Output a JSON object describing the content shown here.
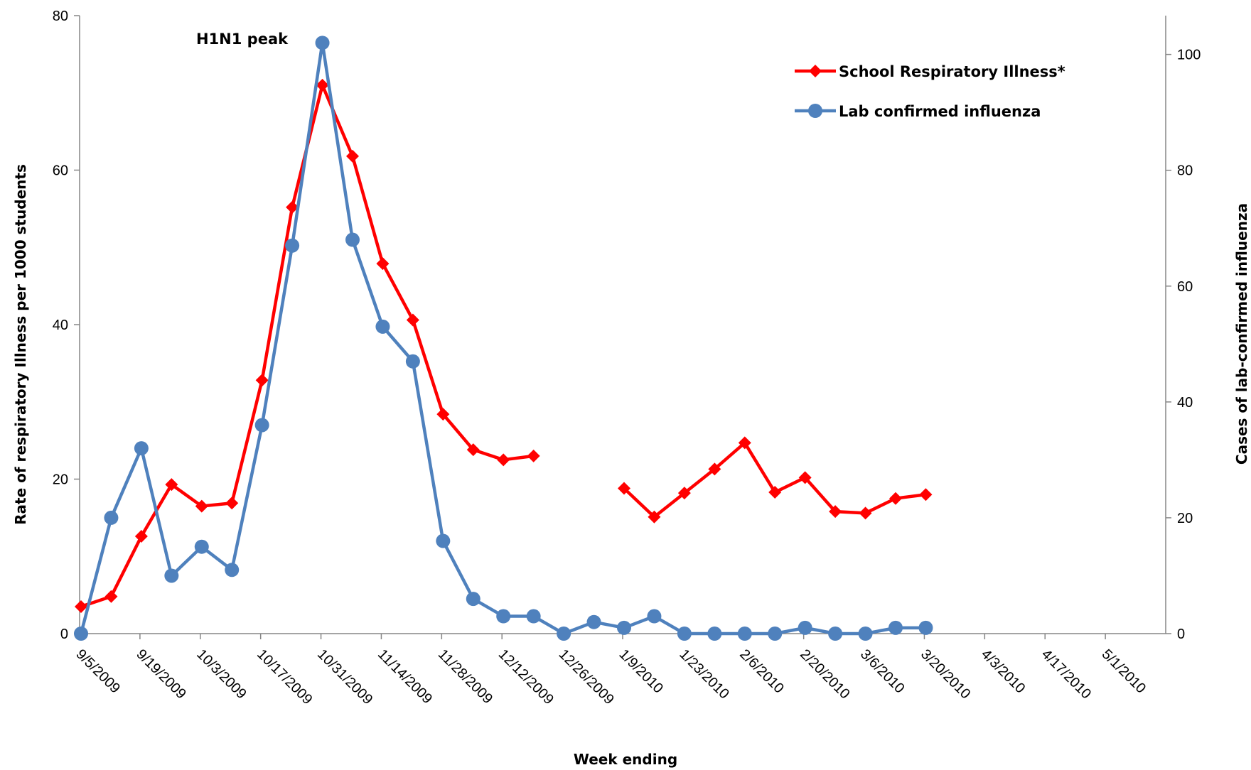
{
  "chart_data": {
    "type": "line",
    "title": "",
    "xlabel": "Week ending",
    "ylabel_left": "Rate of respiratory Illness per 1000 students",
    "ylabel_right": "Cases of lab-confirmed influenza",
    "ylim_left": [
      0,
      80
    ],
    "yticks_left": [
      "0",
      "20",
      "40",
      "60",
      "80"
    ],
    "ylim_right": [
      0,
      106.7
    ],
    "yticks_right": [
      "0",
      "20",
      "40",
      "60",
      "80",
      "100"
    ],
    "grid": false,
    "legend_position": "top-right",
    "x_tick_labels": [
      "9/5/2009",
      "9/19/2009",
      "10/3/2009",
      "10/17/2009",
      "10/31/2009",
      "11/14/2009",
      "11/28/2009",
      "12/12/2009",
      "12/26/2009",
      "1/9/2010",
      "1/23/2010",
      "2/6/2010",
      "2/20/2010",
      "3/6/2010",
      "3/20/2010",
      "4/3/2010",
      "4/17/2010",
      "5/1/2010"
    ],
    "x_weeks": [
      "9/5/2009",
      "9/12/2009",
      "9/19/2009",
      "9/26/2009",
      "10/3/2009",
      "10/10/2009",
      "10/17/2009",
      "10/24/2009",
      "10/31/2009",
      "11/7/2009",
      "11/14/2009",
      "11/21/2009",
      "11/28/2009",
      "12/5/2009",
      "12/12/2009",
      "12/19/2009",
      "12/26/2009",
      "1/2/2010",
      "1/9/2010",
      "1/16/2010",
      "1/23/2010",
      "1/30/2010",
      "2/6/2010",
      "2/13/2010",
      "2/20/2010",
      "2/27/2010",
      "3/6/2010",
      "3/13/2010",
      "3/20/2010"
    ],
    "series": [
      {
        "name": "School Respiratory Illness*",
        "axis": "left",
        "color": "#ff0000",
        "marker": "diamond",
        "values": [
          3.5,
          4.8,
          12.6,
          19.3,
          16.5,
          16.9,
          32.8,
          55.2,
          71.0,
          61.8,
          47.9,
          40.6,
          28.4,
          23.8,
          22.5,
          23.0,
          null,
          null,
          18.8,
          15.1,
          18.2,
          21.3,
          24.7,
          18.3,
          20.2,
          15.8,
          15.6,
          17.5,
          18.0
        ]
      },
      {
        "name": "Lab confirmed influenza",
        "axis": "right",
        "color": "#4f81bd",
        "marker": "circle",
        "values": [
          0,
          20,
          32,
          10,
          15,
          11,
          36,
          67,
          102,
          68,
          53,
          47,
          16,
          6,
          3,
          3,
          0,
          2,
          1,
          3,
          0,
          0,
          0,
          0,
          1,
          0,
          0,
          1,
          1
        ]
      }
    ],
    "annotations": [
      "H1N1 peak"
    ]
  }
}
